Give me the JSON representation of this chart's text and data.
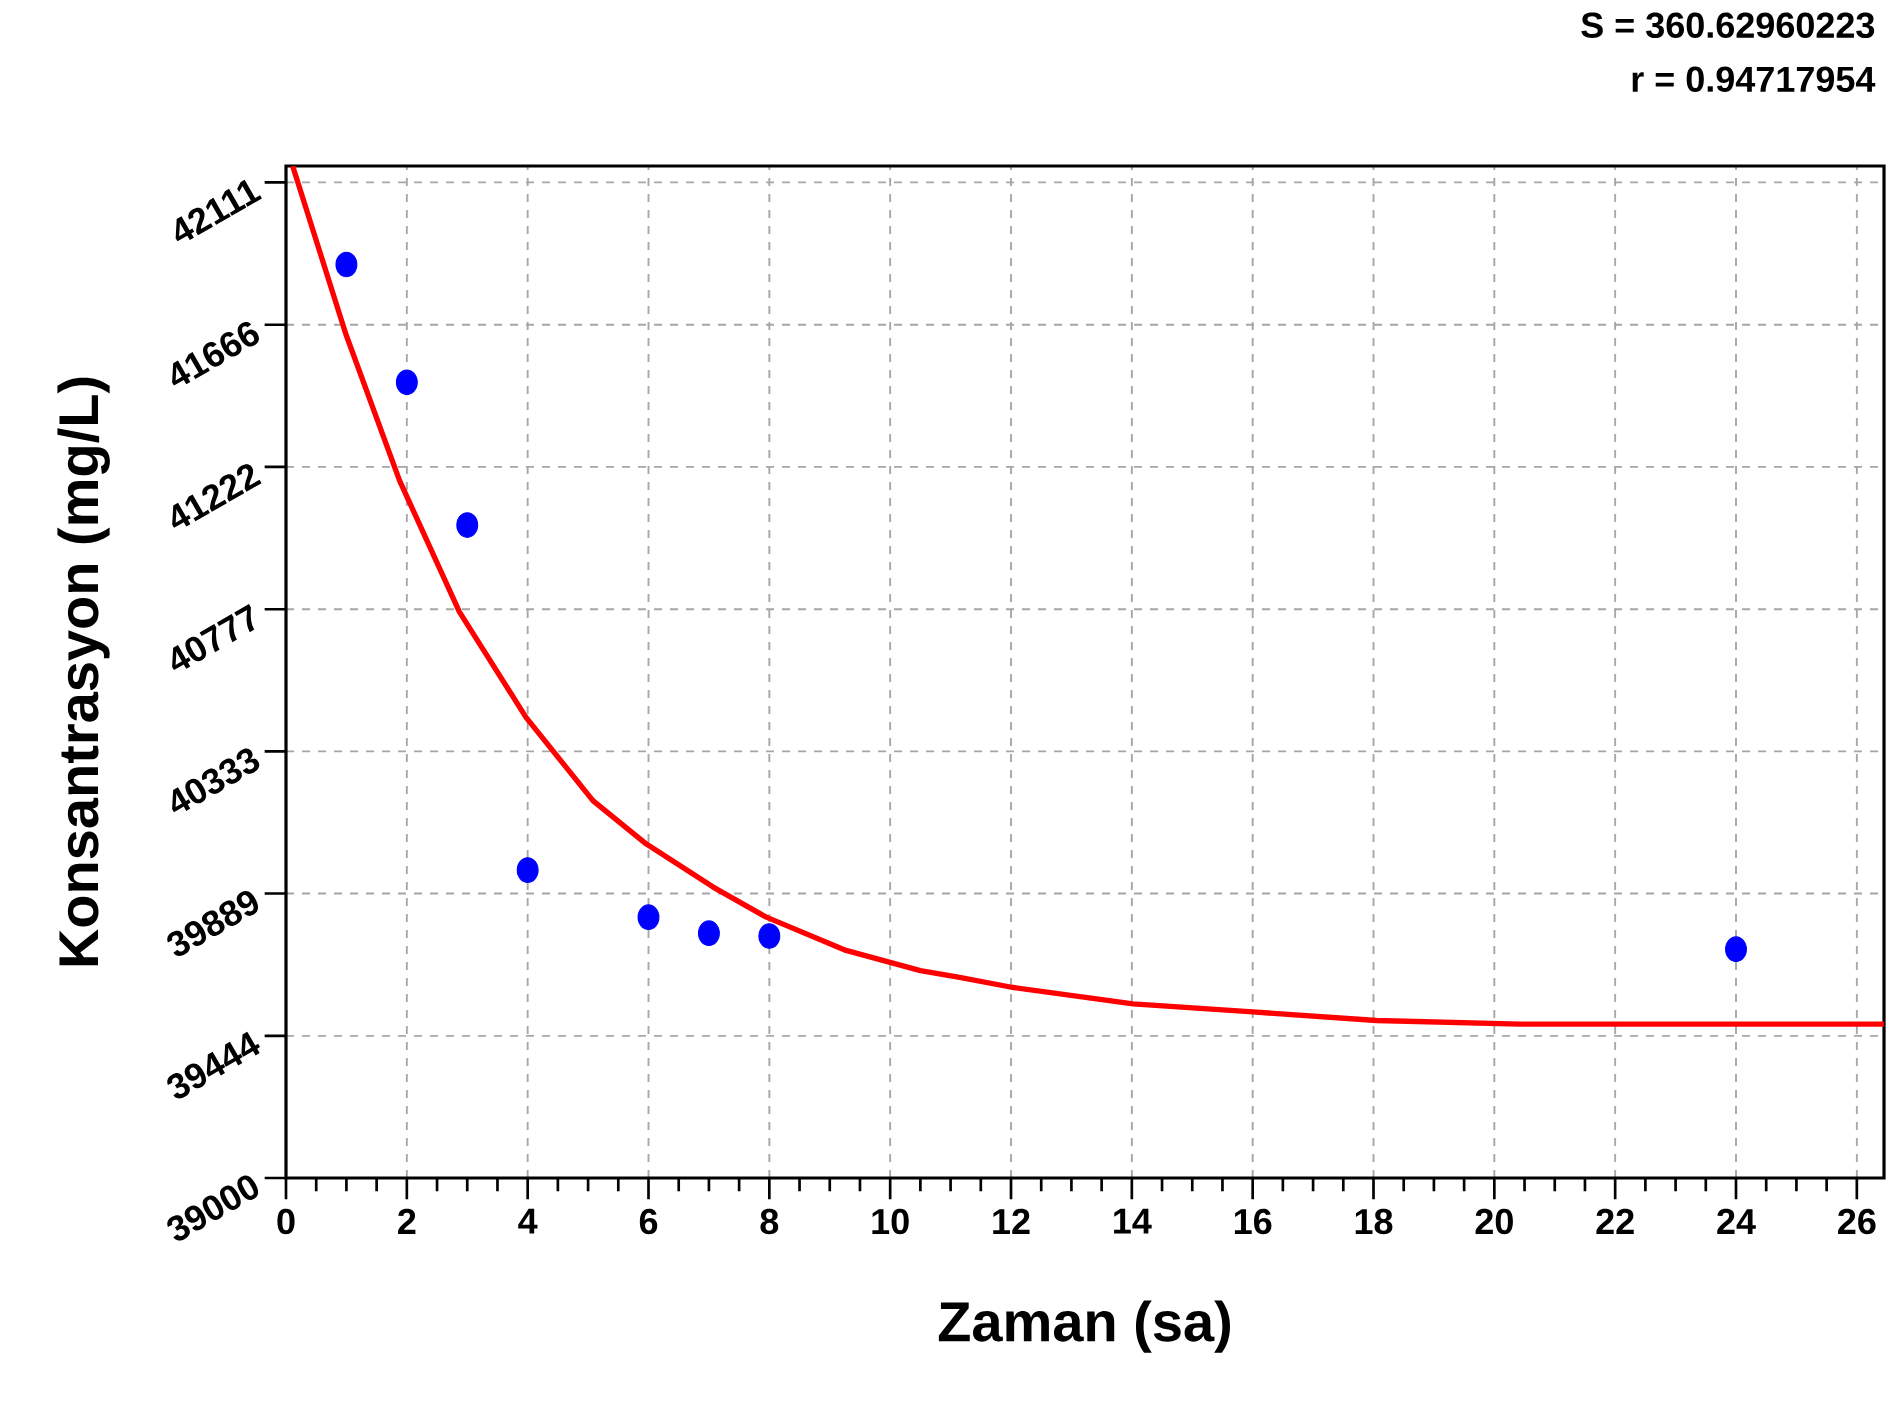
{
  "chart_data": {
    "type": "scatter",
    "xlabel": "Zaman (sa)",
    "ylabel": "Konsantrasyon (mg/L)",
    "annotations": [
      "S = 360.62960223",
      "r = 0.94717954"
    ],
    "xlim": [
      0,
      26.45
    ],
    "ylim": [
      39000,
      42162
    ],
    "xticks": [
      0,
      2,
      4,
      6,
      8,
      10,
      12,
      14,
      16,
      18,
      20,
      22,
      24,
      26
    ],
    "yticks": [
      39000,
      39444,
      39889,
      40333,
      40777,
      41222,
      41666,
      42111
    ],
    "grid": true,
    "series": [
      {
        "color": "#0000ff",
        "marker": "circle",
        "x": [
          1,
          2,
          3,
          4,
          6,
          7,
          8,
          24
        ],
        "values": [
          41854,
          41486,
          41040,
          39962,
          39815,
          39765,
          39756,
          39715
        ]
      },
      {
        "type": "line",
        "color": "#ff0000",
        "marker": "none",
        "line_style": "solid",
        "x": [
          0.11,
          0.99,
          1.88,
          2.87,
          3.97,
          5.08,
          5.96,
          7.07,
          7.95,
          9.27,
          10.5,
          11.15,
          12.01,
          14.02,
          16.0,
          18.05,
          20.42,
          26.45
        ],
        "values": [
          42162,
          41637,
          41179,
          40769,
          40440,
          40179,
          40044,
          39909,
          39815,
          39711,
          39648,
          39627,
          39596,
          39544,
          39519,
          39492,
          39481,
          39481
        ]
      }
    ]
  }
}
